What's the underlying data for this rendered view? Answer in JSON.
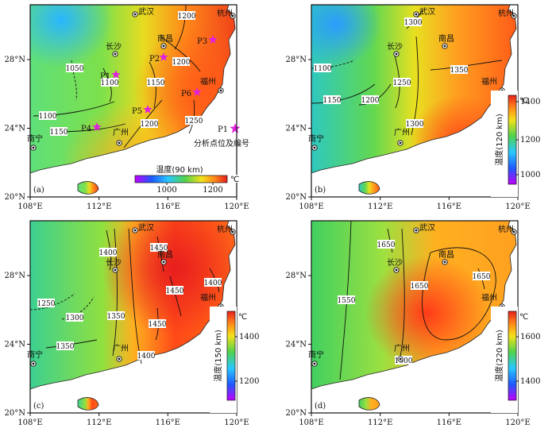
{
  "figure": {
    "colors": {
      "purple": "#c000ff",
      "blue": "#1e5aff",
      "cyan": "#29c8ff",
      "green": "#4fd24f",
      "yellow": "#f2e21a",
      "orange": "#ff8a1a",
      "red": "#e81e1e",
      "sea": "#ffffff",
      "star": "#e020e0"
    },
    "x_ticks": [
      "108°E",
      "112°E",
      "116°E",
      "120°E"
    ],
    "y_ticks": [
      "20°N",
      "24°N",
      "28°N"
    ],
    "unit": "℃",
    "cities": [
      "武汉",
      "杭州",
      "长沙",
      "南昌",
      "福州",
      "广州",
      "南宁"
    ],
    "panels": [
      {
        "id": "a",
        "tag": "(a)",
        "colorbar_title": "温度(90 km)",
        "colorbar_orientation": "horizontal",
        "colorbar_ticks": [
          "1000",
          "1200"
        ],
        "contours": [
          "1050",
          "1100",
          "1100",
          "1150",
          "1150",
          "1200",
          "1200",
          "1200",
          "1250"
        ],
        "points": [
          "P1",
          "P2",
          "P3",
          "P4",
          "P5",
          "P6"
        ],
        "legend_point": "P1",
        "legend_text": "分析点位及编号"
      },
      {
        "id": "b",
        "tag": "(b)",
        "colorbar_title": "温度(120 km)",
        "colorbar_orientation": "vertical",
        "colorbar_ticks": [
          "1400",
          "1200",
          "1000"
        ],
        "contours": [
          "1100",
          "1150",
          "1200",
          "1250",
          "1300",
          "1300",
          "1350"
        ]
      },
      {
        "id": "c",
        "tag": "(c)",
        "colorbar_title": "温度(150 km)",
        "colorbar_orientation": "vertical",
        "colorbar_ticks": [
          "1400",
          "1200"
        ],
        "contours": [
          "1250",
          "1300",
          "1350",
          "1350",
          "1400",
          "1400",
          "1450",
          "1450",
          "1450",
          "1400"
        ]
      },
      {
        "id": "d",
        "tag": "(d)",
        "colorbar_title": "温度(220 km)",
        "colorbar_orientation": "vertical",
        "colorbar_ticks": [
          "1600",
          "1400"
        ],
        "contours": [
          "1550",
          "1600",
          "1650",
          "1650",
          "1650"
        ]
      }
    ]
  }
}
